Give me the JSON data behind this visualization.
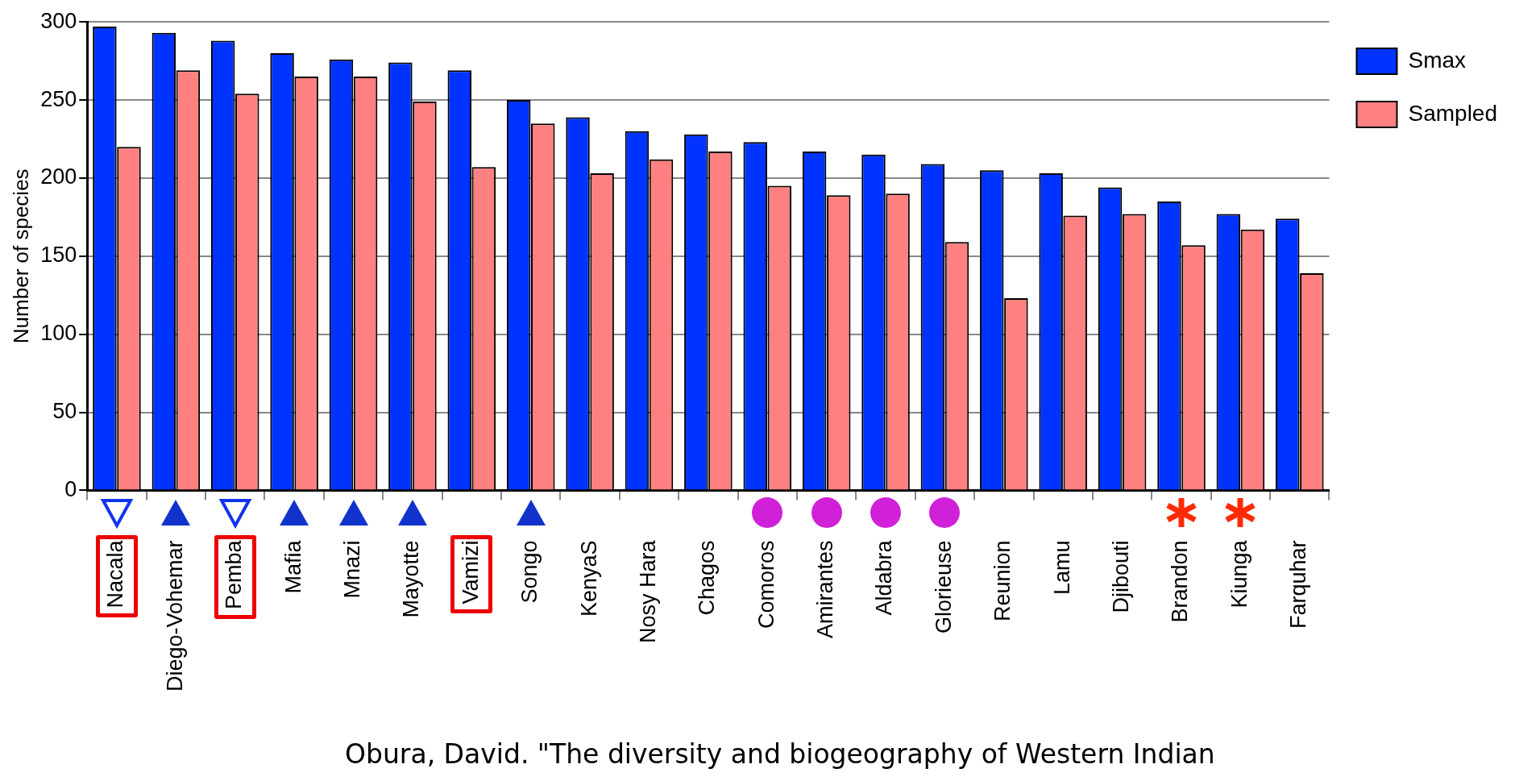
{
  "chart_data": {
    "type": "bar",
    "ylabel": "Number of species",
    "categories": [
      "Nacala",
      "Diego-Vohemar",
      "Pemba",
      "Mafia",
      "Mnazi",
      "Mayotte",
      "Vamizi",
      "Songo",
      "KenyaS",
      "Nosy Hara",
      "Chagos",
      "Comoros",
      "Amirantes",
      "Aldabra",
      "Glorieuse",
      "Reunion",
      "Lamu",
      "Djibouti",
      "Brandon",
      "Kiunga",
      "Farquhar"
    ],
    "series": [
      {
        "name": "Smax",
        "color": "#0033ff",
        "values": [
          297,
          293,
          288,
          280,
          276,
          274,
          269,
          250,
          239,
          230,
          228,
          223,
          217,
          215,
          209,
          205,
          203,
          194,
          185,
          177,
          174
        ]
      },
      {
        "name": "Sampled",
        "color": "#ff8080",
        "values": [
          220,
          269,
          254,
          265,
          265,
          249,
          207,
          235,
          203,
          212,
          217,
          195,
          189,
          190,
          159,
          123,
          176,
          177,
          157,
          167,
          139
        ]
      }
    ],
    "ylim": [
      0,
      300
    ],
    "yticks": [
      0,
      50,
      100,
      150,
      200,
      250,
      300
    ],
    "grid": "y",
    "legend": "top right",
    "annotations": [
      "Obura, David. \"The diversity and biogeography of Western Indian"
    ]
  }
}
